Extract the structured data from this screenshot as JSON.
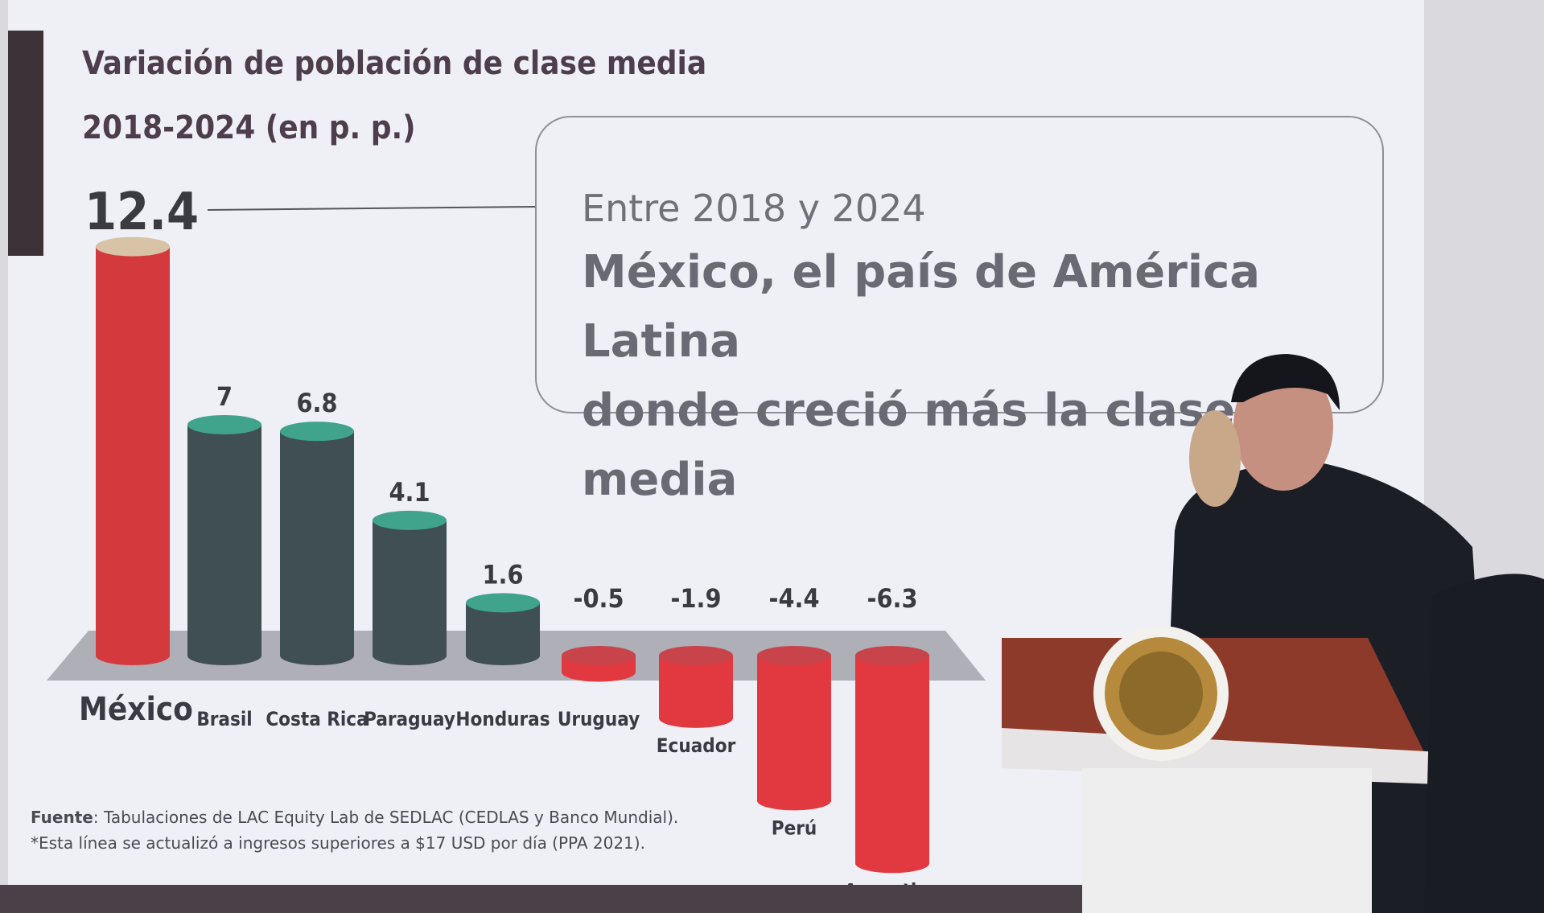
{
  "slide": {
    "title_line1": "Variación de población de clase media",
    "title_line2": "2018-2024 (en p. p.)",
    "callout_sub": "Entre 2018 y 2024",
    "callout_main_line1": "México, el país de América Latina",
    "callout_main_line2": "donde creció más la clase media",
    "source_label": "Fuente",
    "source_text": ": Tabulaciones de LAC Equity Lab de SEDLAC (CEDLAS y Banco Mundial).",
    "note": "*Esta línea se actualizó a ingresos superiores a $17 USD por día (PPA 2021)."
  },
  "chart_data": {
    "type": "bar",
    "title": "Variación de población de clase media 2018-2024 (en p. p.)",
    "categories": [
      "México",
      "Brasil",
      "Costa Rica",
      "Paraguay",
      "Honduras",
      "Uruguay",
      "Ecuador",
      "Perú",
      "Argentina"
    ],
    "values": [
      12.4,
      7,
      6.8,
      4.1,
      1.6,
      -0.5,
      -1.9,
      -4.4,
      -6.3
    ],
    "value_labels": [
      "12.4",
      "7",
      "6.8",
      "4.1",
      "1.6",
      "-0.5",
      "-1.9",
      "-4.4",
      "-6.3"
    ],
    "colors": {
      "highlight": "#d4393e",
      "positive": "#3f4f52",
      "positive_top": "#3fa48a",
      "negative": "#e2383f",
      "highlight_top": "#d9c3a6"
    },
    "grid": false
  }
}
